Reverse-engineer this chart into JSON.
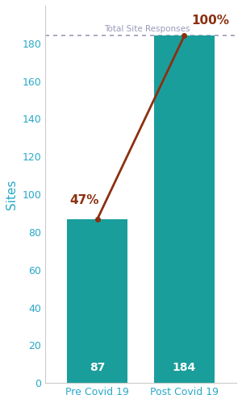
{
  "categories": [
    "Pre Covid 19",
    "Post Covid 19"
  ],
  "values": [
    87,
    184
  ],
  "percentages": [
    "47%",
    "100%"
  ],
  "bar_color": "#1a9e9c",
  "line_color": "#8B3010",
  "reference_line_value": 184,
  "reference_line_label": "Total Site Responses",
  "ylabel": "Sites",
  "ylabel_color": "#29a8c8",
  "tick_color": "#29a8c8",
  "xlabel_color": "#29a8c8",
  "bar_label_color": "#ffffff",
  "pct_label_color": "#8B3010",
  "reference_line_color": "#9999bb",
  "ylim": [
    0,
    200
  ],
  "yticks": [
    0,
    20,
    40,
    60,
    80,
    100,
    120,
    140,
    160,
    180
  ],
  "bar_width": 0.7,
  "figsize": [
    3.0,
    5.0
  ],
  "dpi": 100
}
